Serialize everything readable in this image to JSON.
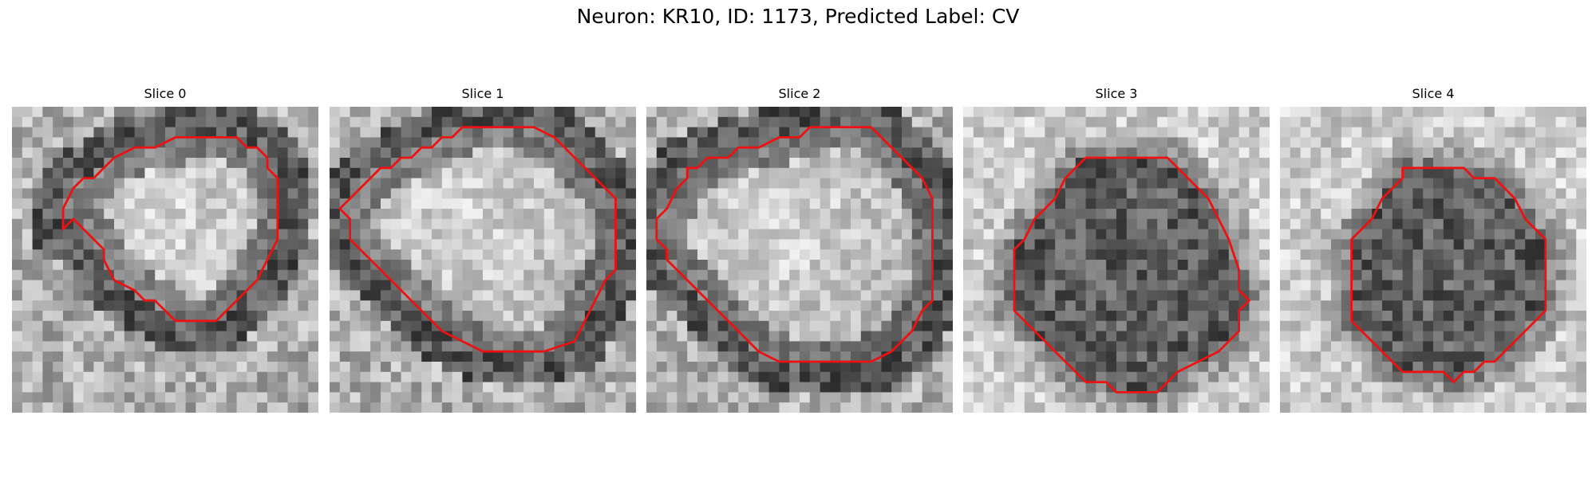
{
  "figure": {
    "title": "Neuron: KR10, ID: 1173, Predicted Label: CV",
    "contour_color": "#ee1111",
    "panels": [
      {
        "title": "Slice 0",
        "center_brightness": "bright",
        "contour": [
          [
            17,
            3
          ],
          [
            22,
            3
          ],
          [
            23,
            4
          ],
          [
            24,
            4
          ],
          [
            25,
            5
          ],
          [
            25,
            6
          ],
          [
            26,
            7
          ],
          [
            26,
            13
          ],
          [
            25,
            15
          ],
          [
            24,
            17
          ],
          [
            22,
            19
          ],
          [
            21,
            20
          ],
          [
            20,
            21
          ],
          [
            16,
            21
          ],
          [
            15,
            20
          ],
          [
            14,
            19
          ],
          [
            13,
            19
          ],
          [
            12,
            18
          ],
          [
            10,
            17
          ],
          [
            9,
            15
          ],
          [
            9,
            14
          ],
          [
            8,
            13
          ],
          [
            7,
            12
          ],
          [
            6,
            11
          ],
          [
            5,
            12
          ],
          [
            5,
            10
          ],
          [
            6,
            8
          ],
          [
            7,
            7
          ],
          [
            8,
            7
          ],
          [
            9,
            6
          ],
          [
            10,
            5
          ],
          [
            12,
            4
          ],
          [
            14,
            4
          ],
          [
            16,
            3
          ]
        ]
      },
      {
        "title": "Slice 1",
        "center_brightness": "bright",
        "contour": [
          [
            15,
            2
          ],
          [
            20,
            2
          ],
          [
            22,
            3
          ],
          [
            24,
            5
          ],
          [
            27,
            8
          ],
          [
            28,
            9
          ],
          [
            28,
            16
          ],
          [
            27,
            17
          ],
          [
            26,
            19
          ],
          [
            25,
            21
          ],
          [
            24,
            23
          ],
          [
            21,
            24
          ],
          [
            15,
            24
          ],
          [
            13,
            23
          ],
          [
            11,
            22
          ],
          [
            8,
            19
          ],
          [
            7,
            18
          ],
          [
            5,
            16
          ],
          [
            3,
            14
          ],
          [
            2,
            13
          ],
          [
            2,
            11
          ],
          [
            1,
            10
          ],
          [
            2,
            9
          ],
          [
            3,
            8
          ],
          [
            4,
            7
          ],
          [
            5,
            6
          ],
          [
            6,
            6
          ],
          [
            7,
            5
          ],
          [
            8,
            5
          ],
          [
            9,
            4
          ],
          [
            10,
            4
          ],
          [
            11,
            3
          ],
          [
            12,
            3
          ],
          [
            13,
            2
          ]
        ]
      },
      {
        "title": "Slice 2",
        "center_brightness": "bright",
        "contour": [
          [
            16,
            2
          ],
          [
            22,
            2
          ],
          [
            23,
            3
          ],
          [
            24,
            4
          ],
          [
            25,
            5
          ],
          [
            26,
            6
          ],
          [
            27,
            7
          ],
          [
            28,
            9
          ],
          [
            28,
            19
          ],
          [
            27,
            20
          ],
          [
            26,
            22
          ],
          [
            25,
            23
          ],
          [
            24,
            24
          ],
          [
            22,
            25
          ],
          [
            13,
            25
          ],
          [
            11,
            24
          ],
          [
            9,
            22
          ],
          [
            7,
            20
          ],
          [
            5,
            18
          ],
          [
            4,
            17
          ],
          [
            3,
            16
          ],
          [
            2,
            15
          ],
          [
            2,
            14
          ],
          [
            1,
            13
          ],
          [
            1,
            11
          ],
          [
            2,
            10
          ],
          [
            3,
            8
          ],
          [
            4,
            7
          ],
          [
            4,
            6
          ],
          [
            5,
            6
          ],
          [
            6,
            5
          ],
          [
            7,
            5
          ],
          [
            8,
            5
          ],
          [
            9,
            4
          ],
          [
            11,
            4
          ],
          [
            13,
            3
          ],
          [
            15,
            3
          ]
        ]
      },
      {
        "title": "Slice 3",
        "center_brightness": "dark",
        "contour": [
          [
            12,
            5
          ],
          [
            20,
            5
          ],
          [
            21,
            6
          ],
          [
            22,
            7
          ],
          [
            23,
            8
          ],
          [
            24,
            9
          ],
          [
            25,
            11
          ],
          [
            26,
            13
          ],
          [
            27,
            16
          ],
          [
            27,
            18
          ],
          [
            28,
            19
          ],
          [
            27,
            20
          ],
          [
            27,
            22
          ],
          [
            26,
            23
          ],
          [
            25,
            24
          ],
          [
            23,
            25
          ],
          [
            21,
            26
          ],
          [
            20,
            27
          ],
          [
            19,
            28
          ],
          [
            15,
            28
          ],
          [
            14,
            27
          ],
          [
            12,
            27
          ],
          [
            11,
            26
          ],
          [
            10,
            25
          ],
          [
            9,
            24
          ],
          [
            8,
            23
          ],
          [
            7,
            22
          ],
          [
            6,
            21
          ],
          [
            5,
            20
          ],
          [
            5,
            14
          ],
          [
            6,
            13
          ],
          [
            7,
            11
          ],
          [
            8,
            10
          ],
          [
            9,
            9
          ],
          [
            10,
            7
          ],
          [
            11,
            6
          ]
        ]
      },
      {
        "title": "Slice 4",
        "center_brightness": "dark",
        "contour": [
          [
            12,
            6
          ],
          [
            18,
            6
          ],
          [
            19,
            7
          ],
          [
            21,
            7
          ],
          [
            22,
            8
          ],
          [
            23,
            9
          ],
          [
            24,
            11
          ],
          [
            25,
            12
          ],
          [
            26,
            13
          ],
          [
            26,
            20
          ],
          [
            25,
            21
          ],
          [
            24,
            22
          ],
          [
            23,
            23
          ],
          [
            22,
            24
          ],
          [
            21,
            25
          ],
          [
            20,
            25
          ],
          [
            19,
            26
          ],
          [
            18,
            26
          ],
          [
            17,
            27
          ],
          [
            16,
            26
          ],
          [
            12,
            26
          ],
          [
            11,
            25
          ],
          [
            10,
            24
          ],
          [
            9,
            23
          ],
          [
            8,
            22
          ],
          [
            7,
            21
          ],
          [
            7,
            13
          ],
          [
            8,
            12
          ],
          [
            9,
            11
          ],
          [
            10,
            9
          ],
          [
            11,
            8
          ],
          [
            12,
            7
          ]
        ]
      }
    ]
  }
}
